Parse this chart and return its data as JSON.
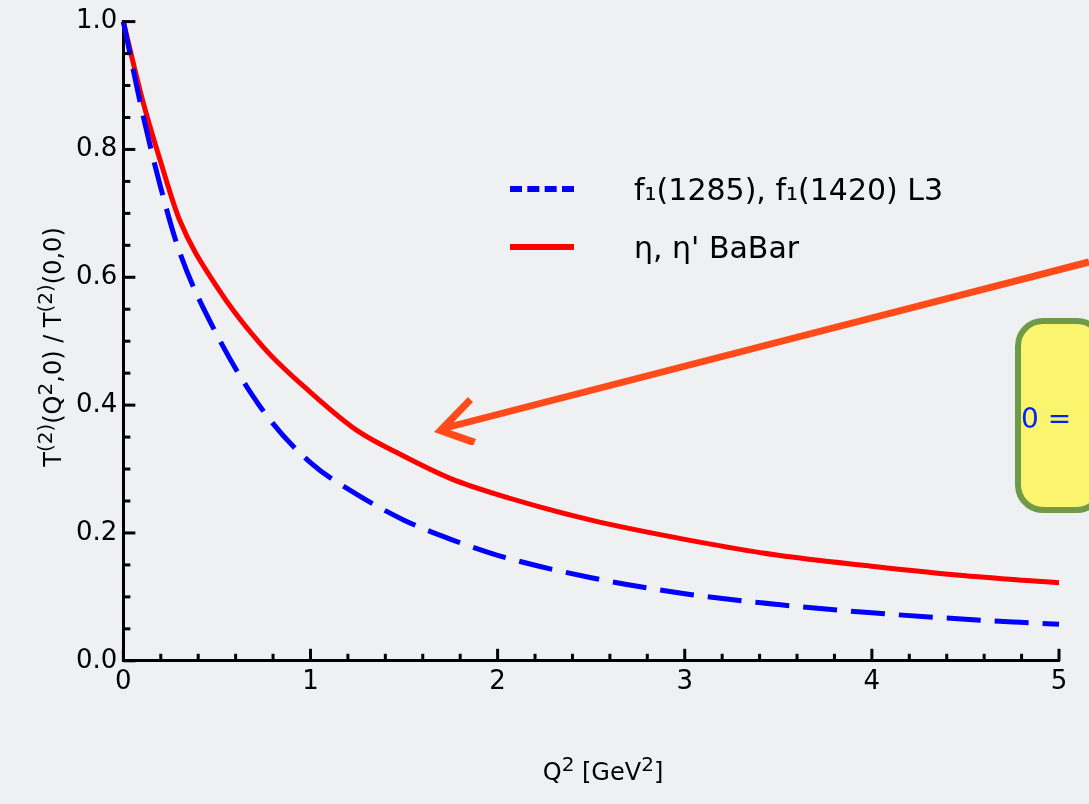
{
  "chart_data": {
    "type": "line",
    "xlabel": "Q$^{2}$ [GeV$^{2}$]",
    "ylabel": "T$^{(2)}$(Q$^{2}$,0) / T$^{(2)}$(0,0)",
    "series": [
      {
        "name": "f₁(1285), f₁(1420)  L3",
        "color": "#0000ff",
        "line_style": "dashed",
        "x": [
          0,
          0.1,
          0.2,
          0.3,
          0.5,
          0.75,
          1,
          1.25,
          1.5,
          1.75,
          2,
          2.5,
          3,
          3.5,
          4,
          4.5,
          5
        ],
        "values": [
          1.0,
          0.86,
          0.74,
          0.64,
          0.51,
          0.39,
          0.31,
          0.26,
          0.22,
          0.19,
          0.165,
          0.13,
          0.105,
          0.088,
          0.075,
          0.065,
          0.057
        ]
      },
      {
        "name": "η, η'   BaBar",
        "color": "#ff0000",
        "line_style": "solid",
        "x": [
          0,
          0.1,
          0.2,
          0.3,
          0.5,
          0.75,
          1,
          1.25,
          1.5,
          1.75,
          2,
          2.5,
          3,
          3.5,
          4,
          4.5,
          5
        ],
        "values": [
          1.0,
          0.88,
          0.78,
          0.69,
          0.585,
          0.49,
          0.42,
          0.36,
          0.32,
          0.285,
          0.26,
          0.22,
          0.19,
          0.165,
          0.148,
          0.133,
          0.122
        ]
      }
    ],
    "xlim": [
      0,
      5
    ],
    "xticks": [
      0,
      {
        "value": 0.2,
        "label": null
      },
      {
        "value": 0.4,
        "label": null
      },
      {
        "value": 0.6,
        "label": null
      },
      {
        "value": 0.8,
        "label": null
      },
      1,
      {
        "value": 1.2,
        "label": null
      },
      {
        "value": 1.4,
        "label": null
      },
      {
        "value": 1.6,
        "label": null
      },
      {
        "value": 1.8,
        "label": null
      },
      2,
      {
        "value": 2.2,
        "label": null
      },
      {
        "value": 2.4,
        "label": null
      },
      {
        "value": 2.6,
        "label": null
      },
      {
        "value": 2.8,
        "label": null
      },
      3,
      {
        "value": 3.2,
        "label": null
      },
      {
        "value": 3.4,
        "label": null
      },
      {
        "value": 3.6,
        "label": null
      },
      {
        "value": 3.8,
        "label": null
      },
      4,
      {
        "value": 4.2,
        "label": null
      },
      {
        "value": 4.4,
        "label": null
      },
      {
        "value": 4.6,
        "label": null
      },
      {
        "value": 4.8,
        "label": null
      },
      5
    ],
    "ylim": [
      0,
      1
    ],
    "yticks": [
      {
        "value": 0,
        "label": "0.0"
      },
      {
        "value": 0.05,
        "label": null
      },
      {
        "value": 0.1,
        "label": null
      },
      {
        "value": 0.15,
        "label": null
      },
      0.2,
      {
        "value": 0.25,
        "label": null
      },
      {
        "value": 0.3,
        "label": null
      },
      {
        "value": 0.35,
        "label": null
      },
      0.4,
      {
        "value": 0.45,
        "label": null
      },
      {
        "value": 0.5,
        "label": null
      },
      {
        "value": 0.55,
        "label": null
      },
      0.6,
      {
        "value": 0.65,
        "label": null
      },
      {
        "value": 0.7,
        "label": null
      },
      {
        "value": 0.75,
        "label": null
      },
      0.8,
      {
        "value": 0.85,
        "label": null
      },
      {
        "value": 0.9,
        "label": null
      },
      {
        "value": 0.95,
        "label": null
      },
      {
        "value": 1,
        "label": "1.0"
      }
    ],
    "grid": false,
    "legend": "top right",
    "marker": "none",
    "annotations": [
      "0 ="
    ]
  }
}
